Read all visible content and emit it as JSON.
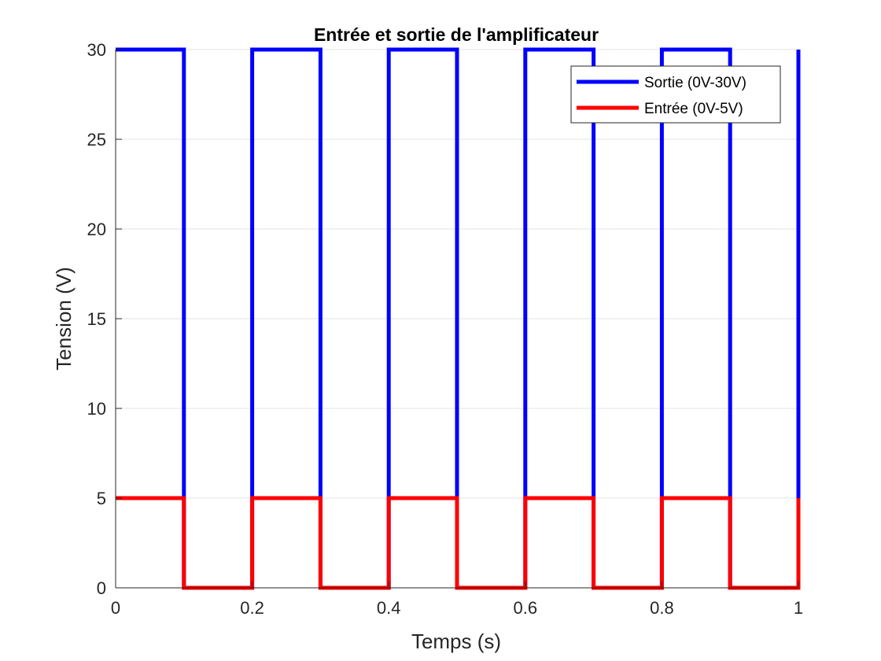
{
  "chart_data": {
    "type": "line",
    "title": "Entrée et sortie de l'amplificateur",
    "xlabel": "Temps (s)",
    "ylabel": "Tension (V)",
    "xlim": [
      0,
      1
    ],
    "ylim": [
      0,
      30
    ],
    "xticks": [
      0,
      0.2,
      0.4,
      0.6,
      0.8,
      1
    ],
    "xtick_labels": [
      "0",
      "0.2",
      "0.4",
      "0.6",
      "0.8",
      "1"
    ],
    "yticks": [
      0,
      5,
      10,
      15,
      20,
      25,
      30
    ],
    "ytick_labels": [
      "0",
      "5",
      "10",
      "15",
      "20",
      "25",
      "30"
    ],
    "grid": "horizontal",
    "legend_position": "top-right",
    "series": [
      {
        "name": "Sortie (0V-30V)",
        "color": "#0000ff",
        "x": [
          0,
          0.1,
          0.1,
          0.2,
          0.2,
          0.3,
          0.3,
          0.4,
          0.4,
          0.5,
          0.5,
          0.6,
          0.6,
          0.7,
          0.7,
          0.8,
          0.8,
          0.9,
          0.9,
          1.0,
          1.0
        ],
        "y": [
          30,
          30,
          0,
          0,
          30,
          30,
          0,
          0,
          30,
          30,
          0,
          0,
          30,
          30,
          0,
          0,
          30,
          30,
          0,
          0,
          30
        ]
      },
      {
        "name": "Entrée (0V-5V)",
        "color": "#ff0000",
        "x": [
          0,
          0.1,
          0.1,
          0.2,
          0.2,
          0.3,
          0.3,
          0.4,
          0.4,
          0.5,
          0.5,
          0.6,
          0.6,
          0.7,
          0.7,
          0.8,
          0.8,
          0.9,
          0.9,
          1.0,
          1.0
        ],
        "y": [
          5,
          5,
          0,
          0,
          5,
          5,
          0,
          0,
          5,
          5,
          0,
          0,
          5,
          5,
          0,
          0,
          5,
          5,
          0,
          0,
          5
        ]
      }
    ]
  }
}
